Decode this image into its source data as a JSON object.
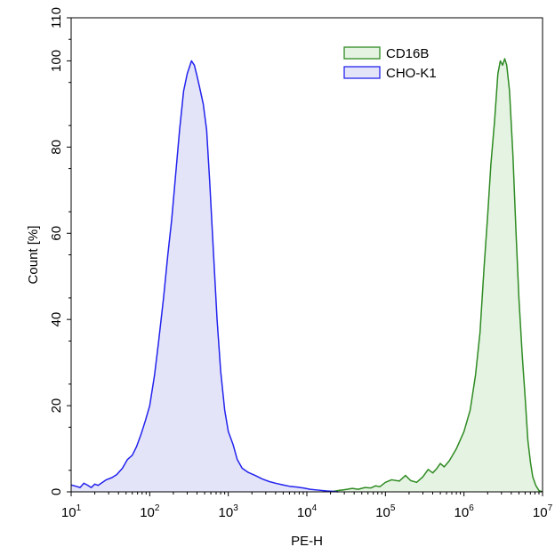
{
  "chart_data": {
    "type": "area",
    "xlabel": "PE-H",
    "ylabel": "Count [%]",
    "x_scale": "log",
    "xlim": [
      10,
      10000000
    ],
    "ylim": [
      0,
      110
    ],
    "x_ticks": [
      {
        "base": "10",
        "exp": "1",
        "value": 10
      },
      {
        "base": "10",
        "exp": "2",
        "value": 100
      },
      {
        "base": "10",
        "exp": "3",
        "value": 1000
      },
      {
        "base": "10",
        "exp": "4",
        "value": 10000
      },
      {
        "base": "10",
        "exp": "5",
        "value": 100000
      },
      {
        "base": "10",
        "exp": "6",
        "value": 1000000
      },
      {
        "base": "10",
        "exp": "7",
        "value": 10000000
      }
    ],
    "y_ticks": [
      "0",
      "20",
      "40",
      "60",
      "80",
      "100",
      "110"
    ],
    "grid": false,
    "legend_position": "top-right",
    "series": [
      {
        "name": "CD16B",
        "stroke": "#2e8b22",
        "fill": "#e5f3e3",
        "points": [
          [
            20000,
            0
          ],
          [
            25000,
            0.3
          ],
          [
            30000,
            0.5
          ],
          [
            38000,
            0.8
          ],
          [
            45000,
            0.6
          ],
          [
            55000,
            1.0
          ],
          [
            65000,
            0.9
          ],
          [
            75000,
            1.4
          ],
          [
            85000,
            1.2
          ],
          [
            100000,
            2.2
          ],
          [
            120000,
            2.8
          ],
          [
            150000,
            2.5
          ],
          [
            180000,
            3.8
          ],
          [
            210000,
            2.6
          ],
          [
            250000,
            2.2
          ],
          [
            300000,
            3.5
          ],
          [
            350000,
            5.2
          ],
          [
            400000,
            4.4
          ],
          [
            450000,
            5.4
          ],
          [
            500000,
            6.6
          ],
          [
            560000,
            5.8
          ],
          [
            650000,
            7.2
          ],
          [
            800000,
            10
          ],
          [
            1000000,
            14
          ],
          [
            1200000,
            19
          ],
          [
            1400000,
            27
          ],
          [
            1600000,
            37
          ],
          [
            1800000,
            52
          ],
          [
            2000000,
            64
          ],
          [
            2200000,
            76
          ],
          [
            2450000,
            86
          ],
          [
            2700000,
            97
          ],
          [
            2900000,
            100
          ],
          [
            3100000,
            99
          ],
          [
            3300000,
            100.5
          ],
          [
            3500000,
            99
          ],
          [
            3800000,
            93
          ],
          [
            4200000,
            78
          ],
          [
            4600000,
            60
          ],
          [
            5000000,
            45
          ],
          [
            5500000,
            32
          ],
          [
            6000000,
            22
          ],
          [
            6500000,
            12
          ],
          [
            7000000,
            7
          ],
          [
            7500000,
            3.5
          ],
          [
            8200000,
            1.5
          ],
          [
            9000000,
            0.3
          ],
          [
            10000000,
            0
          ]
        ]
      },
      {
        "name": "CHO-K1",
        "stroke": "#2222ee",
        "fill": "#e4e4f9",
        "points": [
          [
            10,
            1.6
          ],
          [
            11.5,
            1.3
          ],
          [
            13,
            1.0
          ],
          [
            14.5,
            2.0
          ],
          [
            16,
            1.6
          ],
          [
            18,
            1.0
          ],
          [
            20,
            1.8
          ],
          [
            22,
            1.5
          ],
          [
            25,
            2.2
          ],
          [
            28,
            2.8
          ],
          [
            33,
            3.3
          ],
          [
            38,
            4.0
          ],
          [
            45,
            5.5
          ],
          [
            52,
            7.5
          ],
          [
            60,
            8.5
          ],
          [
            68,
            10.5
          ],
          [
            78,
            13.5
          ],
          [
            88,
            16.5
          ],
          [
            100,
            20
          ],
          [
            115,
            27
          ],
          [
            130,
            35
          ],
          [
            150,
            45
          ],
          [
            170,
            55
          ],
          [
            190,
            63
          ],
          [
            210,
            72
          ],
          [
            240,
            84
          ],
          [
            270,
            93
          ],
          [
            300,
            97
          ],
          [
            340,
            100
          ],
          [
            370,
            99
          ],
          [
            400,
            96.5
          ],
          [
            430,
            94
          ],
          [
            480,
            90
          ],
          [
            530,
            84
          ],
          [
            580,
            72
          ],
          [
            650,
            55
          ],
          [
            720,
            40
          ],
          [
            800,
            28
          ],
          [
            900,
            19
          ],
          [
            1000,
            14
          ],
          [
            1150,
            11
          ],
          [
            1300,
            7.5
          ],
          [
            1500,
            5.5
          ],
          [
            1800,
            4.5
          ],
          [
            2200,
            3.8
          ],
          [
            2700,
            3.0
          ],
          [
            3300,
            2.4
          ],
          [
            4000,
            2.0
          ],
          [
            5000,
            1.6
          ],
          [
            6000,
            1.3
          ],
          [
            7500,
            1.1
          ],
          [
            9000,
            0.9
          ],
          [
            11000,
            0.6
          ],
          [
            14000,
            0.4
          ],
          [
            18000,
            0.2
          ],
          [
            22000,
            0.1
          ],
          [
            25000,
            0
          ]
        ]
      }
    ]
  }
}
